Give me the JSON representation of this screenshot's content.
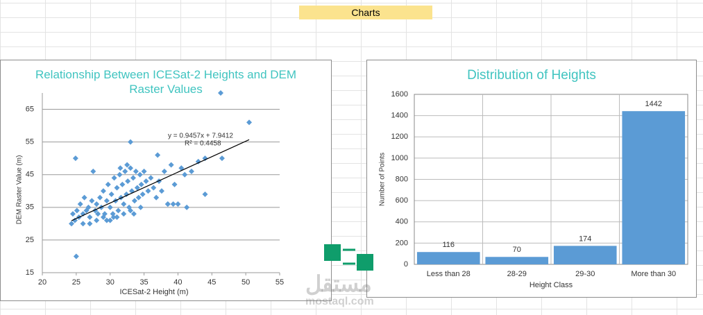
{
  "sheet": {
    "header": "Charts",
    "watermark_logo": "مستقل",
    "watermark": "mostaql.com"
  },
  "chart_data": [
    {
      "type": "scatter",
      "title": "Relationship Between ICESat-2 Heights and DEM Raster Values",
      "x_label": "ICESat-2 Height (m)",
      "y_label": "DEM Raster Value (m)",
      "color": "#5b9bd5",
      "grid": true,
      "xlim": [
        20,
        55
      ],
      "xticks": [
        20,
        25,
        30,
        35,
        40,
        45,
        50,
        55
      ],
      "ylim": [
        15,
        70
      ],
      "yticks": [
        15,
        25,
        35,
        45,
        55,
        65
      ],
      "x": [
        24.3,
        24.5,
        24.8,
        25.1,
        25.4,
        25.6,
        26,
        26.2,
        26.5,
        26.8,
        27,
        27.3,
        27.5,
        27.8,
        28,
        28.2,
        28.5,
        28.7,
        29,
        29.2,
        29.5,
        29.7,
        30,
        30.2,
        30.4,
        30.6,
        30.8,
        31,
        31.2,
        31.4,
        31.6,
        31.8,
        32,
        32.2,
        32.4,
        32.6,
        32.8,
        33,
        33.2,
        33.4,
        33.6,
        33.8,
        34,
        34.2,
        34.4,
        34.6,
        34.8,
        35,
        35.3,
        35.6,
        36,
        36.4,
        36.8,
        37.2,
        37.6,
        38,
        38.5,
        39,
        39.5,
        40,
        40.5,
        41,
        41.3,
        42,
        43,
        44,
        44,
        46.3,
        46.5,
        50.5,
        24.9,
        25,
        33,
        37,
        38.5,
        39.3,
        30,
        31,
        32,
        33,
        29,
        28,
        27,
        26,
        31.5,
        32.5,
        33.5,
        34.5,
        30.5,
        29.5
      ],
      "values": [
        30,
        33,
        31,
        34,
        32,
        36,
        33,
        38,
        34,
        35,
        32,
        37,
        46,
        34,
        36,
        33,
        38,
        35,
        40,
        33,
        37,
        42,
        35,
        39,
        33,
        44,
        37,
        41,
        34,
        45,
        38,
        42,
        36,
        46,
        39,
        43,
        35,
        47,
        40,
        44,
        37,
        46,
        41,
        38,
        45,
        42,
        39,
        46,
        43,
        40,
        44,
        41,
        38,
        43,
        40,
        46,
        36,
        48,
        42,
        36,
        47,
        45,
        35,
        46,
        49,
        50,
        39,
        70,
        50,
        61,
        50,
        20,
        55,
        51,
        36,
        36,
        31,
        32,
        33,
        34,
        32,
        31,
        30,
        30,
        47,
        48,
        33,
        35,
        32,
        31
      ],
      "trendline": {
        "slope": 0.9457,
        "intercept": 7.9412,
        "r2": 0.4458,
        "label": "y = 0.9457x + 7.9412",
        "r2_label": "R² = 0.4458"
      }
    },
    {
      "type": "bar",
      "title": "Distribution of Heights",
      "x_label": "Height Class",
      "y_label": "Number of Points",
      "color": "#5b9bd5",
      "grid": true,
      "categories": [
        "Less than 28",
        "28-29",
        "29-30",
        "More than 30"
      ],
      "values": [
        116,
        70,
        174,
        1442
      ],
      "ylim": [
        0,
        1600
      ],
      "yticks": [
        0,
        200,
        400,
        600,
        800,
        1000,
        1200,
        1400,
        1600
      ]
    }
  ]
}
